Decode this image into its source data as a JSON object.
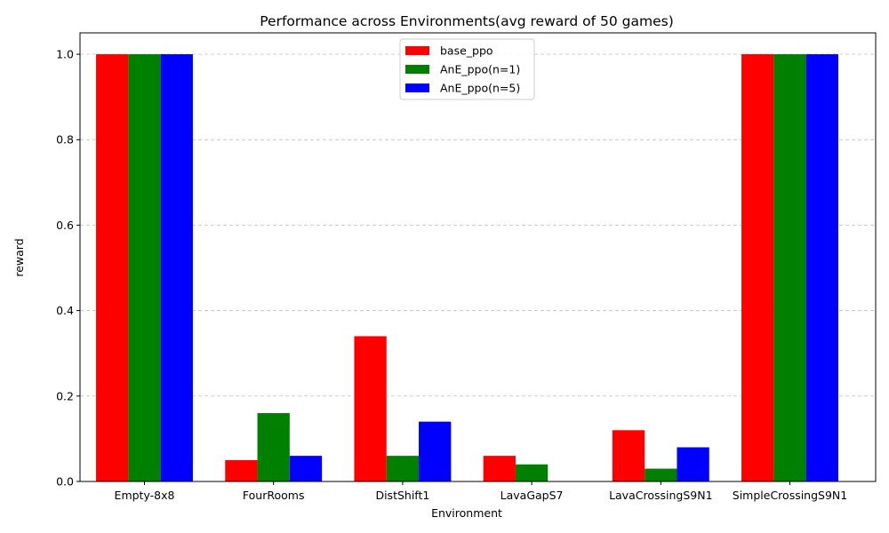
{
  "chart_data": {
    "type": "bar",
    "title": "Performance across Environments(avg reward of 50 games)",
    "xlabel": "Environment",
    "ylabel": "reward",
    "categories": [
      "Empty-8x8",
      "FourRooms",
      "DistShift1",
      "LavaGapS7",
      "LavaCrossingS9N1",
      "SimpleCrossingS9N1"
    ],
    "series": [
      {
        "name": "base_ppo",
        "color": "#ff0000",
        "values": [
          1.0,
          0.05,
          0.34,
          0.06,
          0.12,
          1.0
        ]
      },
      {
        "name": "AnE_ppo(n=1)",
        "color": "#008000",
        "values": [
          1.0,
          0.16,
          0.06,
          0.04,
          0.03,
          1.0
        ]
      },
      {
        "name": "AnE_ppo(n=5)",
        "color": "#0000ff",
        "values": [
          1.0,
          0.06,
          0.14,
          0.0,
          0.08,
          1.0
        ]
      }
    ],
    "ylim": [
      0,
      1.05
    ],
    "yticks": [
      "0.0",
      "0.2",
      "0.4",
      "0.6",
      "0.8",
      "1.0"
    ],
    "grid": "y-dashed",
    "legend": "top-center"
  }
}
